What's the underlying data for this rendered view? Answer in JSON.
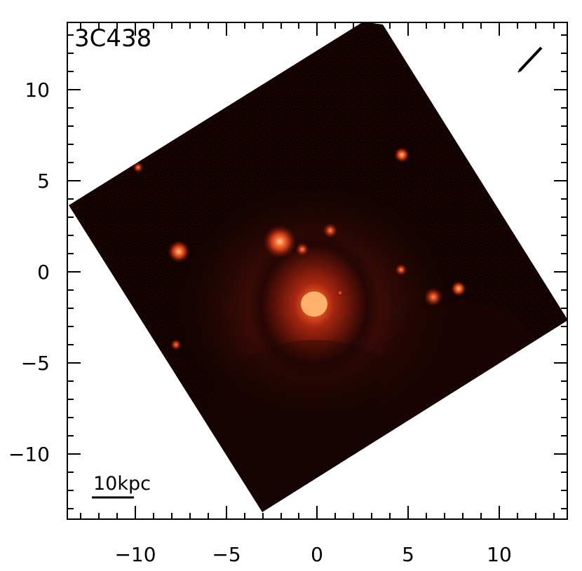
{
  "image": {
    "object_label": "3C438",
    "scale_bar_label": "10kpc",
    "x_tick_labels": [
      "−10",
      "−5",
      "0",
      "5",
      "10"
    ],
    "y_tick_labels": [
      "10",
      "5",
      "0",
      "−5",
      "−10"
    ],
    "colors": {
      "background": "#ffffff",
      "frame": "#000000",
      "field": "#100302",
      "glow": "#c22a0c",
      "core": "#ffb06d"
    }
  }
}
